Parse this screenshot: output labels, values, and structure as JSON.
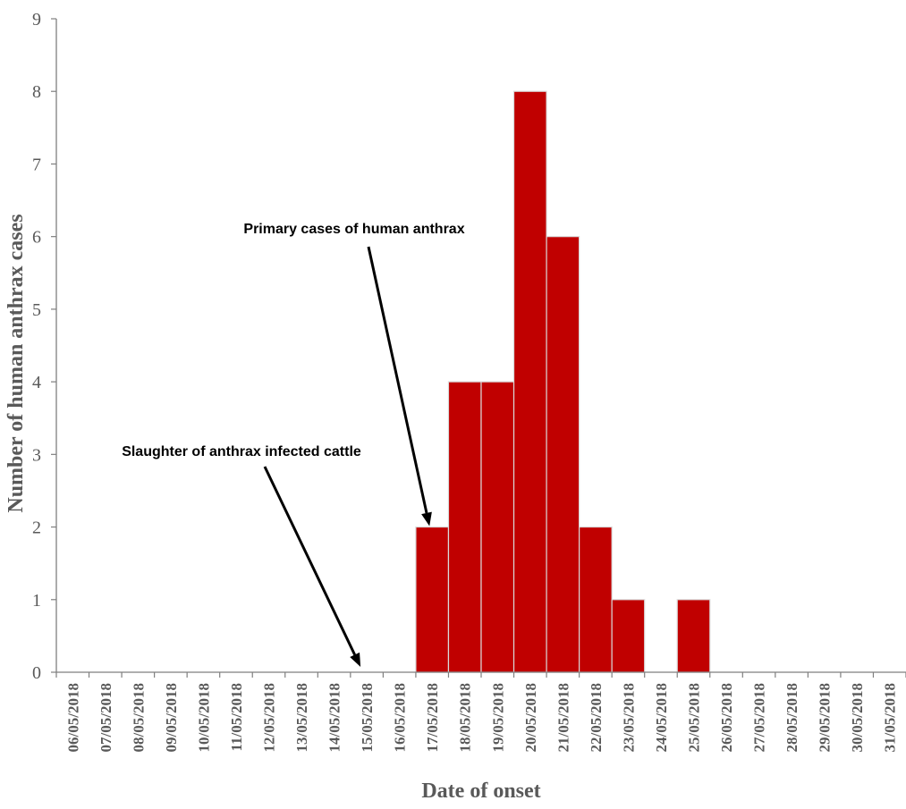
{
  "chart_data": {
    "type": "bar",
    "xlabel": "Date of onset",
    "ylabel": "Number of human anthrax cases",
    "ylim": [
      0,
      9
    ],
    "yticks": [
      0,
      1,
      2,
      3,
      4,
      5,
      6,
      7,
      8,
      9
    ],
    "grid": false,
    "categories": [
      "06/05/2018",
      "07/05/2018",
      "08/05/2018",
      "09/05/2018",
      "10/05/2018",
      "11/05/2018",
      "12/05/2018",
      "13/05/2018",
      "14/05/2018",
      "15/05/2018",
      "16/05/2018",
      "17/05/2018",
      "18/05/2018",
      "19/05/2018",
      "20/05/2018",
      "21/05/2018",
      "22/05/2018",
      "23/05/2018",
      "24/05/2018",
      "25/05/2018",
      "26/05/2018",
      "27/05/2018",
      "28/05/2018",
      "29/05/2018",
      "30/05/2018",
      "31/05/2018"
    ],
    "values": [
      0,
      0,
      0,
      0,
      0,
      0,
      0,
      0,
      0,
      0,
      0,
      2,
      4,
      4,
      8,
      6,
      2,
      1,
      0,
      1,
      0,
      0,
      0,
      0,
      0,
      0
    ],
    "bar_color": "#c00000",
    "bar_edge_color": "#d9d9d9",
    "axis_color": "#7f7f7f",
    "text_color": "#595959",
    "annotations": [
      {
        "text": "Primary cases of human anthrax",
        "target_category": "17/05/2018",
        "target_value": 2
      },
      {
        "text": "Slaughter of anthrax infected cattle",
        "target_category": "15/05/2018",
        "target_value": 0
      }
    ]
  }
}
